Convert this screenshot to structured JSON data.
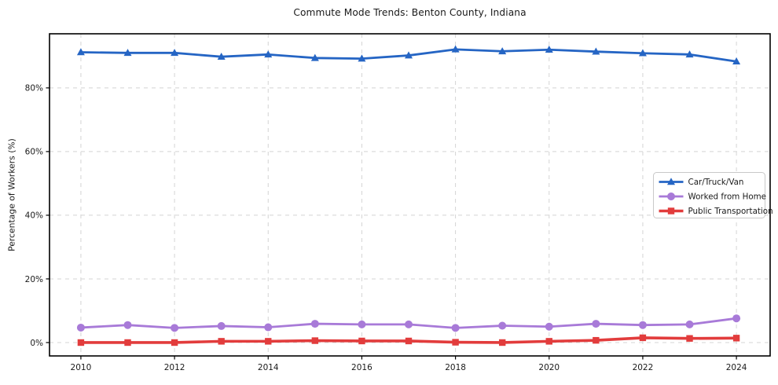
{
  "chart_data": {
    "type": "line",
    "title": "Commute Mode Trends: Benton County, Indiana",
    "xlabel": "",
    "ylabel": "Percentage of Workers (%)",
    "x": [
      2010,
      2011,
      2012,
      2013,
      2014,
      2015,
      2016,
      2017,
      2018,
      2019,
      2020,
      2021,
      2022,
      2023,
      2024
    ],
    "x_tick_values": [
      2010,
      2012,
      2014,
      2016,
      2018,
      2020,
      2022,
      2024
    ],
    "x_tick_labels": [
      "2010",
      "2012",
      "2014",
      "2016",
      "2018",
      "2020",
      "2022",
      "2024"
    ],
    "y_tick_values": [
      0,
      20,
      40,
      60,
      80
    ],
    "y_tick_labels": [
      "0%",
      "20%",
      "40%",
      "60%",
      "80%"
    ],
    "xlim": [
      2009.33,
      2024.72
    ],
    "ylim": [
      -4.2,
      97.0
    ],
    "grid": true,
    "grid_style": "dashed",
    "legend_position": "center-right",
    "series": [
      {
        "name": "Car/Truck/Van",
        "color": "#2565c4",
        "marker": "triangle-up",
        "line_width": 2.8,
        "values": [
          91.2,
          91.0,
          91.0,
          89.8,
          90.5,
          89.4,
          89.2,
          90.2,
          92.1,
          91.5,
          92.0,
          91.4,
          90.9,
          90.5,
          88.3
        ]
      },
      {
        "name": "Worked from Home",
        "color": "#a87ad8",
        "marker": "circle",
        "line_width": 2.8,
        "values": [
          4.7,
          5.5,
          4.6,
          5.2,
          4.8,
          5.9,
          5.7,
          5.7,
          4.6,
          5.3,
          5.0,
          5.9,
          5.5,
          5.7,
          7.6
        ]
      },
      {
        "name": "Public Transportation",
        "color": "#e23c3c",
        "marker": "square",
        "line_width": 3.6,
        "values": [
          0.0,
          0.0,
          0.0,
          0.4,
          0.4,
          0.6,
          0.5,
          0.5,
          0.1,
          0.0,
          0.4,
          0.7,
          1.5,
          1.3,
          1.4
        ]
      }
    ]
  },
  "colors": {
    "grid": "#d4d4d4",
    "spine": "#000000",
    "tick_text": "#1a1a1a",
    "legend_border": "#c9c9c9",
    "background": "#ffffff"
  }
}
